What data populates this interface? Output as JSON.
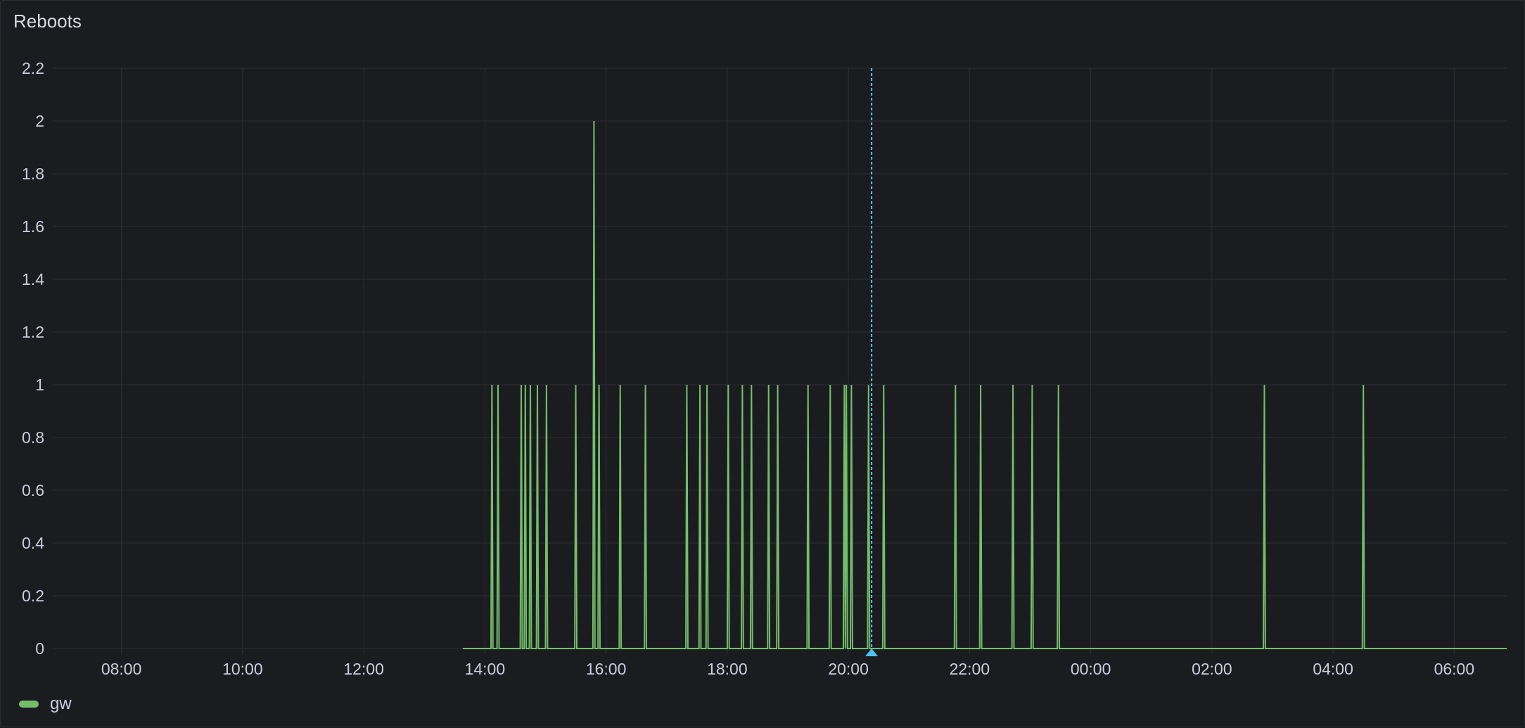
{
  "panel": {
    "title": "Reboots"
  },
  "chart_data": {
    "type": "line",
    "title": "Reboots",
    "xlabel": "",
    "ylabel": "",
    "ylim": [
      0,
      2.2
    ],
    "y_ticks": [
      "0",
      "0.2",
      "0.4",
      "0.6",
      "0.8",
      "1",
      "1.2",
      "1.4",
      "1.6",
      "1.8",
      "2",
      "2.2"
    ],
    "x_range": {
      "start": "06:52",
      "end": "06:52"
    },
    "x_ticks": [
      "08:00",
      "10:00",
      "12:00",
      "14:00",
      "16:00",
      "18:00",
      "20:00",
      "22:00",
      "00:00",
      "02:00",
      "04:00",
      "06:00"
    ],
    "grid": true,
    "legend_placement": "bottom-left",
    "series": [
      {
        "name": "gw",
        "color": "#73bf69",
        "data_start": "13:38",
        "data_end": "06:52",
        "baseline": 0,
        "spikes": [
          {
            "time": "14:07",
            "value": 1
          },
          {
            "time": "14:13",
            "value": 1
          },
          {
            "time": "14:36",
            "value": 1
          },
          {
            "time": "14:40",
            "value": 1
          },
          {
            "time": "14:45",
            "value": 1
          },
          {
            "time": "14:52",
            "value": 1
          },
          {
            "time": "15:01",
            "value": 1
          },
          {
            "time": "15:30",
            "value": 1
          },
          {
            "time": "15:48",
            "value": 2
          },
          {
            "time": "15:53",
            "value": 1
          },
          {
            "time": "16:14",
            "value": 1
          },
          {
            "time": "16:39",
            "value": 1
          },
          {
            "time": "17:20",
            "value": 1
          },
          {
            "time": "17:33",
            "value": 1
          },
          {
            "time": "17:40",
            "value": 1
          },
          {
            "time": "18:01",
            "value": 1
          },
          {
            "time": "18:15",
            "value": 1
          },
          {
            "time": "18:24",
            "value": 1
          },
          {
            "time": "18:41",
            "value": 1
          },
          {
            "time": "18:50",
            "value": 1
          },
          {
            "time": "19:20",
            "value": 1
          },
          {
            "time": "19:42",
            "value": 1
          },
          {
            "time": "19:56",
            "value": 1
          },
          {
            "time": "19:58",
            "value": 1
          },
          {
            "time": "20:03",
            "value": 1
          },
          {
            "time": "20:20",
            "value": 1
          },
          {
            "time": "20:35",
            "value": 1
          },
          {
            "time": "21:46",
            "value": 1
          },
          {
            "time": "22:11",
            "value": 1
          },
          {
            "time": "22:43",
            "value": 1
          },
          {
            "time": "23:02",
            "value": 1
          },
          {
            "time": "23:28",
            "value": 1
          },
          {
            "time": "02:52",
            "value": 1
          },
          {
            "time": "04:30",
            "value": 1
          }
        ]
      }
    ],
    "annotations": [
      {
        "time": "20:23",
        "color": "#4cc4f0"
      }
    ]
  },
  "colors": {
    "background": "#1b1c20",
    "grid": "#2c2e33",
    "text": "#ccccdc"
  }
}
